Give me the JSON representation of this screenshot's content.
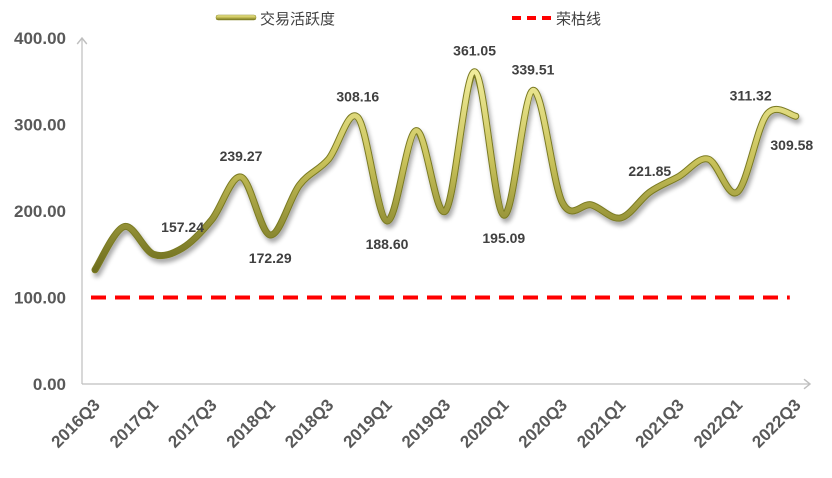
{
  "chart_data": {
    "type": "line",
    "title": "",
    "xlabel": "",
    "ylabel": "",
    "ylim": [
      0,
      400
    ],
    "y_ticks": [
      "0.00",
      "100.00",
      "200.00",
      "300.00",
      "400.00"
    ],
    "x_tick_labels": [
      "2016Q3",
      "2017Q1",
      "2017Q3",
      "2018Q1",
      "2018Q3",
      "2019Q1",
      "2019Q3",
      "2020Q1",
      "2020Q3",
      "2021Q1",
      "2021Q3",
      "2022Q1",
      "2022Q3"
    ],
    "grid": false,
    "legend_position": "top",
    "categories": [
      "2016Q3",
      "2016Q4",
      "2017Q1",
      "2017Q2",
      "2017Q3",
      "2017Q4",
      "2018Q1",
      "2018Q2",
      "2018Q3",
      "2018Q4",
      "2019Q1",
      "2019Q2",
      "2019Q3",
      "2019Q4",
      "2020Q1",
      "2020Q2",
      "2020Q3",
      "2020Q4",
      "2021Q1",
      "2021Q2",
      "2021Q3",
      "2021Q4",
      "2022Q1",
      "2022Q2",
      "2022Q3"
    ],
    "series": [
      {
        "name": "交易活跃度",
        "color": "#a3a332",
        "values": [
          132,
          182,
          150,
          157.24,
          190,
          239.27,
          172.29,
          230,
          260,
          308.16,
          188.6,
          293,
          200,
          361.05,
          195.09,
          339.51,
          210,
          207,
          192,
          221.85,
          240,
          260,
          222,
          311.32,
          309.58
        ],
        "labels": [
          {
            "index": 3,
            "text": "157.24",
            "pos": "above"
          },
          {
            "index": 5,
            "text": "239.27",
            "pos": "above"
          },
          {
            "index": 6,
            "text": "172.29",
            "pos": "below"
          },
          {
            "index": 9,
            "text": "308.16",
            "pos": "above"
          },
          {
            "index": 10,
            "text": "188.60",
            "pos": "below"
          },
          {
            "index": 13,
            "text": "361.05",
            "pos": "above"
          },
          {
            "index": 14,
            "text": "195.09",
            "pos": "below"
          },
          {
            "index": 15,
            "text": "339.51",
            "pos": "above"
          },
          {
            "index": 19,
            "text": "221.85",
            "pos": "above"
          },
          {
            "index": 23,
            "text": "311.32",
            "pos": "above"
          },
          {
            "index": 24,
            "text": "309.58",
            "pos": "below"
          }
        ]
      },
      {
        "name": "荣枯线",
        "color": "#ff0000",
        "style": "dashed",
        "values": [
          100,
          100,
          100,
          100,
          100,
          100,
          100,
          100,
          100,
          100,
          100,
          100,
          100,
          100,
          100,
          100,
          100,
          100,
          100,
          100,
          100,
          100,
          100,
          100,
          100
        ]
      }
    ]
  }
}
